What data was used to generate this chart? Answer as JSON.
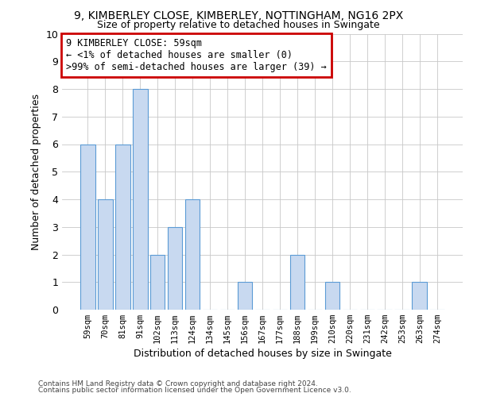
{
  "title1": "9, KIMBERLEY CLOSE, KIMBERLEY, NOTTINGHAM, NG16 2PX",
  "title2": "Size of property relative to detached houses in Swingate",
  "xlabel": "Distribution of detached houses by size in Swingate",
  "ylabel": "Number of detached properties",
  "categories": [
    "59sqm",
    "70sqm",
    "81sqm",
    "91sqm",
    "102sqm",
    "113sqm",
    "124sqm",
    "134sqm",
    "145sqm",
    "156sqm",
    "167sqm",
    "177sqm",
    "188sqm",
    "199sqm",
    "210sqm",
    "220sqm",
    "231sqm",
    "242sqm",
    "253sqm",
    "263sqm",
    "274sqm"
  ],
  "values": [
    6,
    4,
    6,
    8,
    2,
    3,
    4,
    0,
    0,
    1,
    0,
    0,
    2,
    0,
    1,
    0,
    0,
    0,
    0,
    1,
    0
  ],
  "bar_color": "#c8d9f0",
  "bar_edge_color": "#5b9bd5",
  "annotation_line1": "9 KIMBERLEY CLOSE: 59sqm",
  "annotation_line2": "← <1% of detached houses are smaller (0)",
  "annotation_line3": ">99% of semi-detached houses are larger (39) →",
  "ylim": [
    0,
    10
  ],
  "yticks": [
    0,
    1,
    2,
    3,
    4,
    5,
    6,
    7,
    8,
    9,
    10
  ],
  "footer1": "Contains HM Land Registry data © Crown copyright and database right 2024.",
  "footer2": "Contains public sector information licensed under the Open Government Licence v3.0.",
  "background_color": "#ffffff",
  "grid_color": "#c8c8c8",
  "red_color": "#cc0000",
  "annotation_font_size": 8.5,
  "title1_fontsize": 10,
  "title2_fontsize": 9
}
